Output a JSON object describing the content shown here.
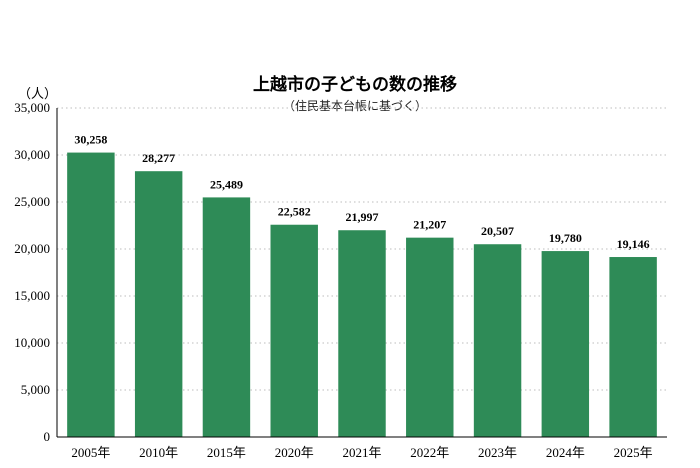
{
  "chart_data": {
    "type": "bar",
    "title": "上越市の子どもの数の推移",
    "subtitle": "（住民基本台帳に基づく）",
    "ylabel": "（人）",
    "xlabel": "",
    "categories": [
      "2005年",
      "2010年",
      "2015年",
      "2020年",
      "2021年",
      "2022年",
      "2023年",
      "2024年",
      "2025年"
    ],
    "values": [
      30258,
      28277,
      25489,
      22582,
      21997,
      21207,
      20507,
      19780,
      19146
    ],
    "data_labels": [
      "30,258",
      "28,277",
      "25,489",
      "22,582",
      "21,997",
      "21,207",
      "20,507",
      "19,780",
      "19,146"
    ],
    "ylim": [
      0,
      35000
    ],
    "yticks": [
      0,
      5000,
      10000,
      15000,
      20000,
      25000,
      30000,
      35000
    ],
    "ytick_labels": [
      "0",
      "5,000",
      "10,000",
      "15,000",
      "20,000",
      "25,000",
      "30,000",
      "35,000"
    ],
    "grid": true,
    "bar_color": "#2e8b57"
  }
}
